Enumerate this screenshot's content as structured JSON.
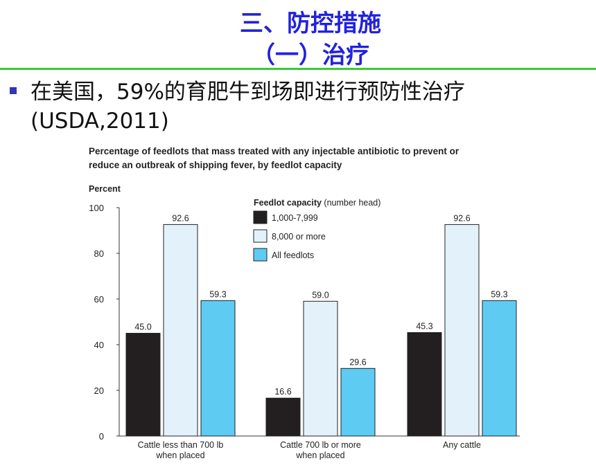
{
  "slide": {
    "title_line1": "三、防控措施",
    "title_line2": "（一）治疗",
    "bullet_line1": "在美国，59%的育肥牛到场即进行预防性治疗",
    "bullet_line2": "(USDA,2011)"
  },
  "colors": {
    "title": "#2222dd",
    "rule": "#33cc33",
    "bullet": "#3333bb",
    "series": [
      "#231f20",
      "#e3f1fb",
      "#5ecbf2"
    ]
  },
  "chart_data": {
    "type": "bar",
    "title_line1": "Percentage of feedlots that mass treated with any injectable antibiotic to prevent or",
    "title_line2": "reduce an outbreak of shipping fever, by feedlot capacity",
    "ylabel": "Percent",
    "ylim": [
      0,
      100
    ],
    "yticks": [
      0,
      20,
      40,
      60,
      80,
      100
    ],
    "categories": [
      [
        "Cattle less than 700 lb",
        "when placed"
      ],
      [
        "Cattle 700 lb or more",
        "when placed"
      ],
      [
        "Any cattle"
      ]
    ],
    "legend_title_bold": "Feedlot capacity",
    "legend_title_rest": " (number head)",
    "legend_position": "top-center",
    "series": [
      {
        "name": "1,000-7,999",
        "values": [
          45.0,
          16.6,
          45.3
        ],
        "labels": [
          "45.0",
          "16.6",
          "45.3"
        ]
      },
      {
        "name": "8,000 or more",
        "values": [
          92.6,
          59.0,
          92.6
        ],
        "labels": [
          "92.6",
          "59.0",
          "92.6"
        ]
      },
      {
        "name": "All feedlots",
        "values": [
          59.3,
          29.6,
          59.3
        ],
        "labels": [
          "59.3",
          "29.6",
          "59.3"
        ]
      }
    ],
    "grid": false
  }
}
